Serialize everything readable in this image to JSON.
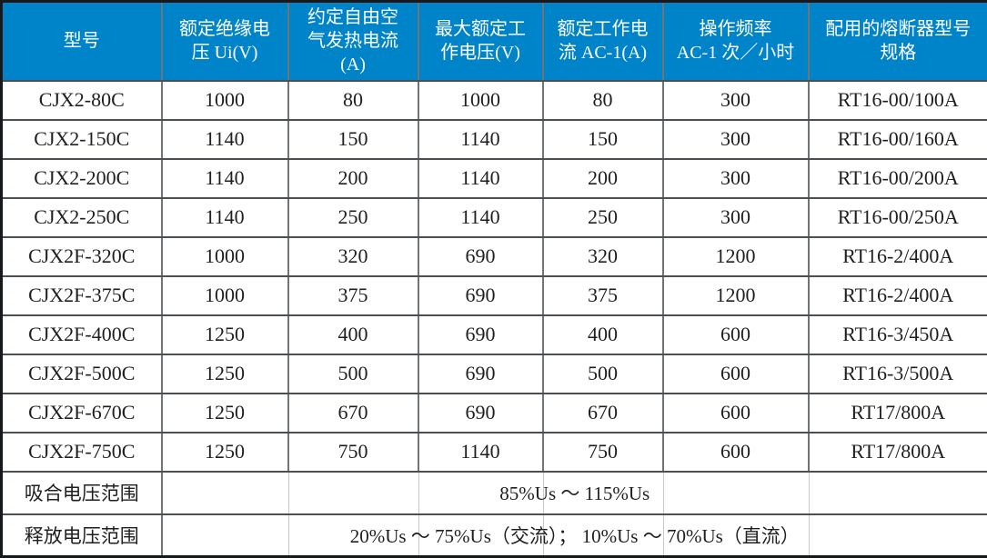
{
  "table": {
    "columns": [
      "型号",
      "额定绝缘电\n压 Ui(V)",
      "约定自由空\n气发热电流\n(A)",
      "最大额定工\n作电压(V)",
      "额定工作电\n流 AC-1(A)",
      "操作频率\nAC-1 次／小时",
      "配用的熔断器型号\n规格"
    ],
    "rows": [
      [
        "CJX2-80C",
        "1000",
        "80",
        "1000",
        "80",
        "300",
        "RT16-00/100A"
      ],
      [
        "CJX2-150C",
        "1140",
        "150",
        "1140",
        "150",
        "300",
        "RT16-00/160A"
      ],
      [
        "CJX2-200C",
        "1140",
        "200",
        "1140",
        "200",
        "300",
        "RT16-00/200A"
      ],
      [
        "CJX2-250C",
        "1140",
        "250",
        "1140",
        "250",
        "300",
        "RT16-00/250A"
      ],
      [
        "CJX2F-320C",
        "1000",
        "320",
        "690",
        "320",
        "1200",
        "RT16-2/400A"
      ],
      [
        "CJX2F-375C",
        "1000",
        "375",
        "690",
        "375",
        "1200",
        "RT16-2/400A"
      ],
      [
        "CJX2F-400C",
        "1250",
        "400",
        "690",
        "400",
        "600",
        "RT16-3/450A"
      ],
      [
        "CJX2F-500C",
        "1250",
        "500",
        "690",
        "500",
        "600",
        "RT16-3/500A"
      ],
      [
        "CJX2F-670C",
        "1250",
        "670",
        "690",
        "670",
        "600",
        "RT17/800A"
      ],
      [
        "CJX2F-750C",
        "1250",
        "750",
        "1140",
        "750",
        "600",
        "RT17/800A"
      ]
    ],
    "footer_rows": [
      {
        "label": "吸合电压范围",
        "value": "85%Us ～ 115%Us"
      },
      {
        "label": "释放电压范围",
        "value": "20%Us ～ 75%Us（交流）； 10%Us ～ 70%Us（直流）"
      }
    ],
    "colors": {
      "header_bg": "#0084c9",
      "header_text": "#ffffff",
      "body_text": "#1f1f1f",
      "grid_line_horizontal": "#4b4f53",
      "grid_line_vertical": "#707476",
      "outer_border": "#16191c",
      "faint_divider": "#c9c9c9"
    }
  }
}
